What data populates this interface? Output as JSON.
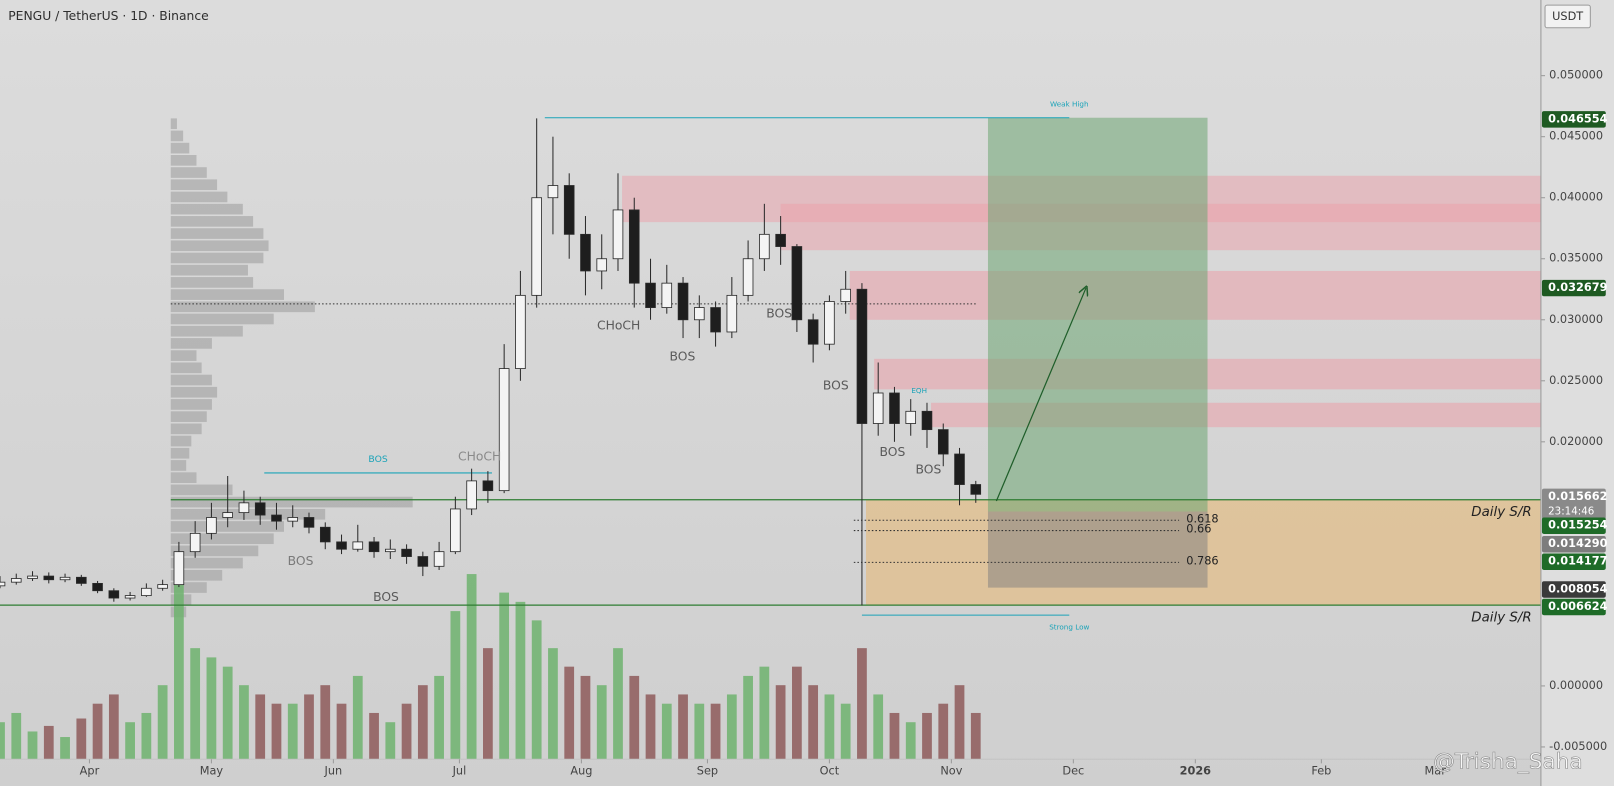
{
  "chart_data": {
    "type": "candlestick",
    "title": "PENGU / TetherUS · 1D · Binance",
    "currency": "USDT",
    "x": [
      0,
      4,
      8,
      12,
      16,
      20,
      24,
      28,
      32,
      36,
      40,
      44,
      48,
      52,
      56,
      60,
      64,
      68,
      72,
      76,
      80,
      84,
      88,
      92,
      96,
      100,
      104,
      108,
      112,
      116,
      120,
      124,
      128,
      132,
      136,
      140,
      144,
      148,
      152,
      156,
      160,
      164,
      168,
      172,
      176,
      180,
      184,
      188,
      192,
      196,
      200,
      204,
      208,
      212,
      216,
      220,
      224,
      228,
      232,
      236,
      240
    ],
    "open": [
      0.0082,
      0.0085,
      0.0088,
      0.009,
      0.0087,
      0.0089,
      0.0084,
      0.0078,
      0.0072,
      0.0074,
      0.008,
      0.0083,
      0.011,
      0.0125,
      0.0138,
      0.0142,
      0.015,
      0.014,
      0.0135,
      0.0138,
      0.013,
      0.0118,
      0.0112,
      0.0118,
      0.011,
      0.0112,
      0.0106,
      0.0098,
      0.011,
      0.0145,
      0.0168,
      0.016,
      0.026,
      0.032,
      0.04,
      0.041,
      0.037,
      0.034,
      0.035,
      0.039,
      0.033,
      0.031,
      0.033,
      0.03,
      0.031,
      0.029,
      0.032,
      0.035,
      0.037,
      0.036,
      0.03,
      0.028,
      0.0315,
      0.0325,
      0.0215,
      0.024,
      0.0215,
      0.0225,
      0.021,
      0.019,
      0.0165
    ],
    "high": [
      0.009,
      0.0092,
      0.0094,
      0.0093,
      0.0092,
      0.0091,
      0.0086,
      0.008,
      0.0077,
      0.0084,
      0.0087,
      0.0118,
      0.0135,
      0.015,
      0.0172,
      0.016,
      0.0155,
      0.015,
      0.0148,
      0.0142,
      0.0134,
      0.0124,
      0.0132,
      0.0122,
      0.012,
      0.0116,
      0.011,
      0.0118,
      0.0155,
      0.0178,
      0.0176,
      0.028,
      0.034,
      0.0465,
      0.045,
      0.042,
      0.0385,
      0.037,
      0.042,
      0.04,
      0.035,
      0.0345,
      0.0335,
      0.032,
      0.0315,
      0.0335,
      0.0365,
      0.0395,
      0.0385,
      0.0362,
      0.0305,
      0.032,
      0.034,
      0.033,
      0.0265,
      0.0245,
      0.0235,
      0.0232,
      0.0215,
      0.0195,
      0.0168
    ],
    "low": [
      0.008,
      0.0083,
      0.0086,
      0.0084,
      0.0085,
      0.0082,
      0.0076,
      0.0069,
      0.007,
      0.0073,
      0.0078,
      0.0081,
      0.0105,
      0.012,
      0.013,
      0.0136,
      0.0132,
      0.0128,
      0.013,
      0.0125,
      0.0112,
      0.0108,
      0.011,
      0.0105,
      0.0104,
      0.01,
      0.009,
      0.0095,
      0.0108,
      0.014,
      0.015,
      0.0158,
      0.025,
      0.031,
      0.037,
      0.035,
      0.032,
      0.0325,
      0.034,
      0.031,
      0.03,
      0.0305,
      0.0285,
      0.0285,
      0.0278,
      0.0285,
      0.0315,
      0.034,
      0.0345,
      0.029,
      0.0265,
      0.0275,
      0.0305,
      0.0066,
      0.0205,
      0.02,
      0.0205,
      0.0195,
      0.018,
      0.0148,
      0.015
    ],
    "close": [
      0.0085,
      0.0088,
      0.009,
      0.0087,
      0.0089,
      0.0084,
      0.0078,
      0.0072,
      0.0074,
      0.008,
      0.0083,
      0.011,
      0.0125,
      0.0138,
      0.0142,
      0.015,
      0.014,
      0.0135,
      0.0138,
      0.013,
      0.0118,
      0.0112,
      0.0118,
      0.011,
      0.0112,
      0.0106,
      0.0098,
      0.011,
      0.0145,
      0.0168,
      0.016,
      0.026,
      0.032,
      0.04,
      0.041,
      0.037,
      0.034,
      0.035,
      0.039,
      0.033,
      0.031,
      0.033,
      0.03,
      0.031,
      0.029,
      0.032,
      0.035,
      0.037,
      0.036,
      0.03,
      0.028,
      0.0315,
      0.0325,
      0.0215,
      0.024,
      0.0215,
      0.0225,
      0.021,
      0.019,
      0.0165,
      0.0157
    ],
    "volume": [
      20,
      25,
      15,
      18,
      12,
      22,
      30,
      35,
      20,
      25,
      40,
      95,
      60,
      55,
      50,
      40,
      35,
      30,
      30,
      35,
      40,
      30,
      45,
      25,
      20,
      30,
      40,
      45,
      80,
      100,
      60,
      90,
      85,
      75,
      60,
      50,
      45,
      40,
      60,
      45,
      35,
      30,
      35,
      30,
      30,
      35,
      45,
      50,
      40,
      50,
      40,
      35,
      30,
      60,
      35,
      25,
      20,
      25,
      30,
      40,
      25
    ],
    "colors": {
      "up": "#f4f4f4",
      "down": "#1e1e1e",
      "volume_up": "#6fb36f",
      "volume_down": "#8e5a5a"
    },
    "xlim": [
      0,
      379
    ],
    "xticks": [
      {
        "value": 22,
        "label": "Apr"
      },
      {
        "value": 52,
        "label": "May"
      },
      {
        "value": 82,
        "label": "Jun"
      },
      {
        "value": 113,
        "label": "Jul"
      },
      {
        "value": 143,
        "label": "Aug"
      },
      {
        "value": 174,
        "label": "Sep"
      },
      {
        "value": 204,
        "label": "Oct"
      },
      {
        "value": 234,
        "label": "Nov"
      },
      {
        "value": 264,
        "label": "Dec"
      },
      {
        "value": 294,
        "label": "2026"
      },
      {
        "value": 325,
        "label": "Feb"
      },
      {
        "value": 353,
        "label": "Mar"
      }
    ],
    "ylim": [
      -0.0082,
      0.0562
    ],
    "yticks": [
      {
        "value": 0.05,
        "label": "0.050000"
      },
      {
        "value": 0.045,
        "label": "0.045000"
      },
      {
        "value": 0.04,
        "label": "0.040000"
      },
      {
        "value": 0.035,
        "label": "0.035000"
      },
      {
        "value": 0.03,
        "label": "0.030000"
      },
      {
        "value": 0.025,
        "label": "0.025000"
      },
      {
        "value": 0.02,
        "label": "0.020000"
      },
      {
        "value": 0,
        "label": "0.000000"
      },
      {
        "value": -0.005,
        "label": "-0.005000"
      }
    ],
    "price_labels": [
      {
        "value": 0.046554,
        "color": "#1e5a22"
      },
      {
        "value": 0.032679,
        "color": "#1e5a22"
      },
      {
        "value": 0.015662,
        "color": "#8a8a8a",
        "countdown": "23:14:46"
      },
      {
        "value": 0.015254,
        "color": "#1e6b28"
      },
      {
        "value": {
          "value": 0.01429,
          "label": "0.014290"
        },
        "color": "#7d7d7d"
      },
      {
        "value": 0.014177,
        "color": "#1e6b28"
      },
      {
        "value": 0.008054,
        "color": "#3a3a3a"
      },
      {
        "value": 0.006624,
        "color": "#1e6b28"
      }
    ],
    "zones": [
      {
        "high": 0.0418,
        "low": 0.038,
        "x_start": 153,
        "color": "rgba(235,160,170,0.5)"
      },
      {
        "high": 0.0395,
        "low": 0.0357,
        "x_start": 192,
        "color": "rgba(235,160,170,0.5)"
      },
      {
        "high": 0.034,
        "low": 0.03,
        "x_start": 209,
        "color": "rgba(235,160,170,0.55)"
      },
      {
        "high": 0.0268,
        "low": 0.0243,
        "x_start": 215,
        "color": "rgba(235,160,170,0.55)"
      },
      {
        "high": 0.0232,
        "low": 0.0212,
        "x_start": 229,
        "color": "rgba(235,160,170,0.55)"
      }
    ],
    "demand_zone": {
      "high": 0.015254,
      "low": 0.006624,
      "x_start": 213,
      "color": "rgba(232,182,112,0.55)"
    },
    "position": {
      "target": 0.046554,
      "entry": 0.01429,
      "stop": 0.008054,
      "x_start": 243,
      "x_end": 297
    },
    "levels": [
      {
        "price": 0.015254,
        "x_start": 42,
        "color": "#2e7d32",
        "label": "Daily S/R"
      },
      {
        "price": 0.006624,
        "x_start": 0,
        "color": "#2e7d32",
        "label": "Daily S/R"
      }
    ],
    "poc": {
      "price": 0.0313,
      "x_start": 42,
      "x_end": 240
    },
    "fib_levels": [
      {
        "ratio": 0.618,
        "price": 0.01357
      },
      {
        "ratio": 0.66,
        "price": 0.01273
      },
      {
        "ratio": 0.786,
        "price": 0.01012
      }
    ],
    "fib_range": [
      210,
      290
    ],
    "structure_lines": [
      {
        "label": "Weak High",
        "price": 0.046554,
        "x_start": 134,
        "x_end": 263,
        "color": "#1ba3b8"
      },
      {
        "label": "Strong Low",
        "price": 0.0058,
        "x_start": 212,
        "x_end": 263,
        "color": "#1ba3b8"
      },
      {
        "label": "BOS",
        "price": 0.01745,
        "x_start": 65,
        "x_end": 121,
        "color": "#1ba3b8"
      }
    ],
    "volume_profile": {
      "prices": [
        0.006,
        0.007,
        0.008,
        0.009,
        0.01,
        0.011,
        0.012,
        0.013,
        0.014,
        0.015,
        0.016,
        0.017,
        0.018,
        0.019,
        0.02,
        0.021,
        0.022,
        0.023,
        0.024,
        0.025,
        0.026,
        0.027,
        0.028,
        0.029,
        0.03,
        0.031,
        0.032,
        0.033,
        0.034,
        0.035,
        0.036,
        0.037,
        0.038,
        0.039,
        0.04,
        0.041,
        0.042,
        0.043,
        0.044,
        0.045,
        0.046
      ],
      "values": [
        15,
        20,
        35,
        50,
        70,
        85,
        100,
        110,
        150,
        235,
        60,
        25,
        15,
        18,
        20,
        30,
        35,
        40,
        45,
        40,
        30,
        25,
        40,
        70,
        100,
        140,
        110,
        80,
        75,
        90,
        95,
        90,
        80,
        70,
        55,
        45,
        35,
        25,
        18,
        12,
        6
      ],
      "x_start": 42
    },
    "annotations": [
      {
        "text": "CHoCH",
        "color": "#5a5a5a"
      },
      {
        "text": "BOS",
        "color": "#5a5a5a"
      },
      {
        "text": "BOS",
        "color": "#5a5a5a"
      },
      {
        "text": "BOS",
        "color": "#5a5a5a"
      },
      {
        "text": "BOS",
        "color": "#5a5a5a"
      },
      {
        "text": "BOS",
        "color": "#5a5a5a"
      },
      {
        "text": "BOS",
        "color": "#7a7a7a"
      },
      {
        "text": "BOS",
        "color": "#5a5a5a"
      },
      {
        "text": "CHoCH",
        "color": "#8a8a8a"
      },
      {
        "text": "EQH",
        "color": "#1ba3b8"
      }
    ],
    "watermark": "@Trisha_Saha"
  }
}
